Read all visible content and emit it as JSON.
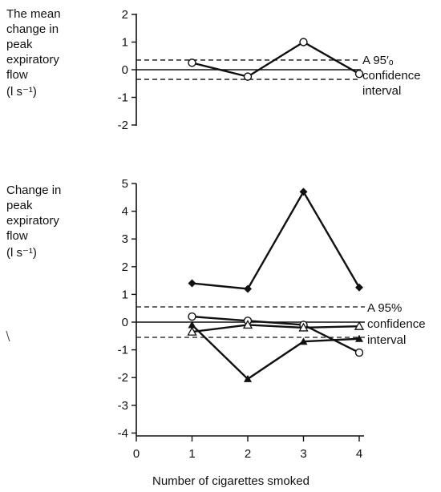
{
  "chart_data": [
    {
      "type": "line",
      "ylabel_lines": [
        "The mean",
        "change in",
        "peak",
        "expiratory",
        "flow",
        "(l s⁻¹)"
      ],
      "y_ticks": [
        "2",
        "1",
        "0",
        "-1",
        "-2"
      ],
      "ylim": [
        -2,
        2
      ],
      "x": [
        1,
        2,
        3,
        4
      ],
      "series": [
        {
          "marker": "open-circle",
          "values": [
            0.25,
            -0.25,
            1.0,
            -0.15
          ]
        }
      ],
      "reference_lines": [
        {
          "y": 0,
          "style": "solid"
        },
        {
          "y": 0.35,
          "style": "dashed"
        },
        {
          "y": -0.35,
          "style": "dashed"
        }
      ],
      "annotation_lines": [
        "A 95′ₒ",
        "confidence",
        "interval"
      ]
    },
    {
      "type": "line",
      "ylabel_lines": [
        "Change in",
        "peak",
        "expiratory",
        "flow",
        "(l s⁻¹)"
      ],
      "y_ticks": [
        "5",
        "4",
        "3",
        "2",
        "1",
        "0",
        "-1",
        "-2",
        "-3",
        "-4"
      ],
      "ylim": [
        -4,
        5
      ],
      "x_ticks": [
        "0",
        "1",
        "2",
        "3",
        "4"
      ],
      "xlim": [
        0,
        4
      ],
      "x": [
        1,
        2,
        3,
        4
      ],
      "xlabel": "Number of cigarettes smoked",
      "series": [
        {
          "marker": "filled-diamond",
          "values": [
            1.4,
            1.2,
            4.7,
            1.25
          ]
        },
        {
          "marker": "open-circle",
          "values": [
            0.2,
            0.05,
            -0.1,
            -1.1
          ]
        },
        {
          "marker": "open-triangle",
          "values": [
            -0.35,
            -0.1,
            -0.2,
            -0.15
          ]
        },
        {
          "marker": "filled-triangle",
          "values": [
            -0.1,
            -2.05,
            -0.7,
            -0.6
          ]
        }
      ],
      "reference_lines": [
        {
          "y": 0,
          "style": "solid"
        },
        {
          "y": 0.55,
          "style": "dashed"
        },
        {
          "y": -0.55,
          "style": "dashed"
        }
      ],
      "annotation_lines": [
        "A  95%",
        "confidence",
        "interval"
      ]
    }
  ]
}
